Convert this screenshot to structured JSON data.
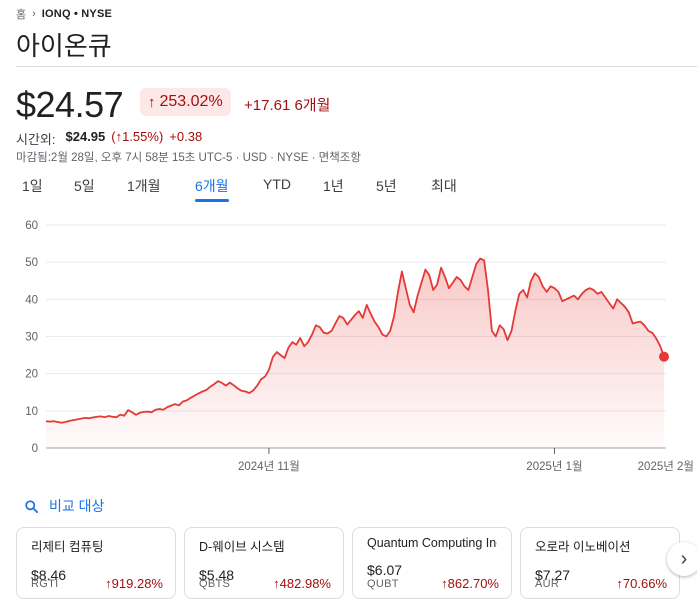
{
  "breadcrumb": {
    "home": "홈",
    "symbol": "IONQ • NYSE"
  },
  "title": "아이온큐",
  "quote": {
    "price": "$24.57",
    "pct": "253.02%",
    "change": "+17.61",
    "period": "6개월"
  },
  "afterhours": {
    "label": "시간외:",
    "price": "$24.95",
    "pct": "(↑1.55%)",
    "change": "+0.38"
  },
  "close_info": "마감됨:2월 28일, 오후 7시 58분 15초 UTC-5 · USD · NYSE · 면책조항",
  "ranges": [
    "1일",
    "5일",
    "1개월",
    "6개월",
    "YTD",
    "1년",
    "5년",
    "최대"
  ],
  "active_range": "6개월",
  "colors": {
    "negative": "#a50e0e",
    "line": "#e53935",
    "accent": "#1a73e8"
  },
  "chart_data": {
    "type": "area",
    "y_ticks": [
      "60",
      "50",
      "40",
      "30",
      "20",
      "10",
      "0"
    ],
    "ylim": [
      0,
      60
    ],
    "x_ticks": [
      "2024년 11월",
      "2025년 1월",
      "2025년 2월"
    ],
    "x_tick_index": [
      57,
      130,
      194
    ],
    "series": [
      {
        "values": [
          7.2,
          7.1,
          7.2,
          7.0,
          6.8,
          7.0,
          7.3,
          7.5,
          7.7,
          7.9,
          8.1,
          8.0,
          8.2,
          8.4,
          8.5,
          8.3,
          8.6,
          8.4,
          8.3,
          9.0,
          8.7,
          10.2,
          9.6,
          8.9,
          9.5,
          9.7,
          9.8,
          9.6,
          10.3,
          10.5,
          10.3,
          11.0,
          11.4,
          11.8,
          11.5,
          12.5,
          12.8,
          13.5,
          14.1,
          14.7,
          15.2,
          15.6,
          16.5,
          17.2,
          18.0,
          17.5,
          16.8,
          17.6,
          16.9,
          16.0,
          15.4,
          15.2,
          14.8,
          15.5,
          16.8,
          18.5,
          19.2,
          21.0,
          24.5,
          25.8,
          25.0,
          24.2,
          27.0,
          28.5,
          27.8,
          29.6,
          27.4,
          28.5,
          30.5,
          33.0,
          32.5,
          31.0,
          30.8,
          31.5,
          33.5,
          35.5,
          35.0,
          33.2,
          34.5,
          35.8,
          36.8,
          35.0,
          38.5,
          36.2,
          34.0,
          32.5,
          30.5,
          30.0,
          31.5,
          35.5,
          42.0,
          47.5,
          43.0,
          38.5,
          36.5,
          41.0,
          44.5,
          48.0,
          46.5,
          42.5,
          44.0,
          48.5,
          46.0,
          43.0,
          44.5,
          46.0,
          45.2,
          43.5,
          42.5,
          46.0,
          49.5,
          51.0,
          50.5,
          42.5,
          31.5,
          30.0,
          33.0,
          32.0,
          29.0,
          31.5,
          37.0,
          41.5,
          42.5,
          40.5,
          45.0,
          47.0,
          46.0,
          43.5,
          42.0,
          43.5,
          43.0,
          42.0,
          39.5,
          40.0,
          40.5,
          41.0,
          40.0,
          41.5,
          42.5,
          43.0,
          42.5,
          41.5,
          42.0,
          40.5,
          39.0,
          37.5,
          40.0,
          39.0,
          38.0,
          36.5,
          33.5,
          33.8,
          34.0,
          33.0,
          31.5,
          31.0,
          29.5,
          27.5,
          24.57
        ],
        "last_value": 24.57
      }
    ],
    "grid": true
  },
  "compare": {
    "label": "비교 대상"
  },
  "cards": [
    {
      "name": "리제티 컴퓨팅",
      "price": "$8.46",
      "ticker": "RGTI",
      "pct": "919.28%"
    },
    {
      "name": "D-웨이브 시스템",
      "price": "$5.48",
      "ticker": "QBTS",
      "pct": "482.98%"
    },
    {
      "name": "Quantum Computing Inc",
      "price": "$6.07",
      "ticker": "QUBT",
      "pct": "862.70%"
    },
    {
      "name": "오로라 이노베이션",
      "price": "$7.27",
      "ticker": "AUR",
      "pct": "70.66%"
    }
  ]
}
